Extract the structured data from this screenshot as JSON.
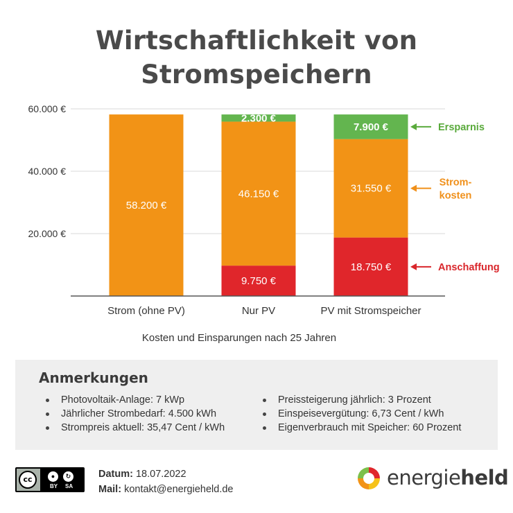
{
  "title_line1": "Wirtschaftlichkeit von",
  "title_line2": "Stromspeichern",
  "chart_data": {
    "type": "bar",
    "stacked": true,
    "title": "Wirtschaftlichkeit von Stromspeichern",
    "xlabel": "Kosten und Einsparungen nach 25 Jahren",
    "ylabel": "",
    "ylim": [
      0,
      60000
    ],
    "yticks": [
      20000,
      40000,
      60000
    ],
    "ytick_labels": [
      "20.000 €",
      "40.000 €",
      "60.000 €"
    ],
    "grid": true,
    "categories": [
      "Strom (ohne PV)",
      "Nur PV",
      "PV mit Stromspeicher"
    ],
    "series": [
      {
        "name": "Anschaffung",
        "color": "#e0262b",
        "values": [
          0,
          9750,
          18750
        ],
        "labels": [
          "",
          "9.750 €",
          "18.750 €"
        ]
      },
      {
        "name": "Strom-kosten",
        "color": "#f29316",
        "values": [
          58200,
          46150,
          31550
        ],
        "labels": [
          "58.200 €",
          "46.150 €",
          "31.550 €"
        ]
      },
      {
        "name": "Ersparnis",
        "color": "#63b54f",
        "values": [
          0,
          2300,
          7900
        ],
        "labels": [
          "",
          "2.300 €",
          "7.900 €"
        ]
      }
    ],
    "legend": {
      "placement": "right",
      "entries": [
        {
          "line1": "Ersparnis",
          "line2": "",
          "color": "#5aaa3c",
          "series_index": 2
        },
        {
          "line1": "Strom-",
          "line2": "kosten",
          "color": "#f0901a",
          "series_index": 1
        },
        {
          "line1": "Anschaffung",
          "line2": "",
          "color": "#d9262b",
          "series_index": 0
        }
      ]
    }
  },
  "notes": {
    "heading": "Anmerkungen",
    "left": [
      "Photovoltaik-Anlage: 7 kWp",
      "Jährlicher Strombedarf: 4.500 kWh",
      "Strompreis aktuell: 35,47 Cent / kWh"
    ],
    "right": [
      "Preissteigerung jährlich: 3 Prozent",
      "Einspeisevergütung: 6,73 Cent / kWh",
      "Eigenverbrauch mit Speicher: 60 Prozent"
    ]
  },
  "footer": {
    "license_cc": "cc",
    "license_by": "BY",
    "license_sa": "SA",
    "date_label": "Datum:",
    "date_value": "18.07.2022",
    "mail_label": "Mail:",
    "mail_value": "kontakt@energieheld.de",
    "brand_regular": "energie",
    "brand_bold": "held"
  },
  "colors": {
    "anschaffung": "#e0262b",
    "stromkosten": "#f29316",
    "ersparnis": "#63b54f",
    "axis": "#555555",
    "grid": "#d9d9d9"
  }
}
